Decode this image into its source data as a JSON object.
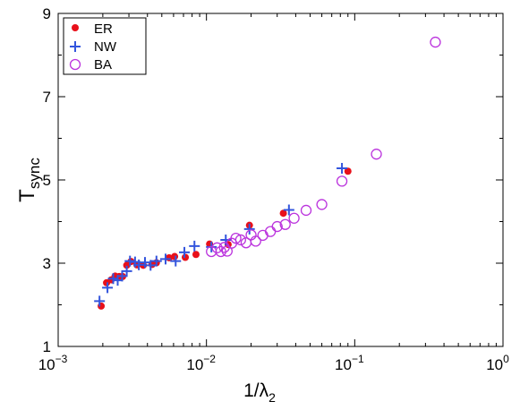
{
  "chart_data": {
    "type": "scatter",
    "x_scale": "log",
    "xlim": [
      0.001,
      1
    ],
    "ylim": [
      1,
      9
    ],
    "xlabel": {
      "main": "1/λ",
      "sub": "2"
    },
    "ylabel": {
      "main": "T",
      "sub": "sync"
    },
    "x_ticks": [
      {
        "value": 0.001,
        "base": "10",
        "exp": "−3"
      },
      {
        "value": 0.01,
        "base": "10",
        "exp": "−2"
      },
      {
        "value": 0.1,
        "base": "10",
        "exp": "−1"
      },
      {
        "value": 1,
        "base": "10",
        "exp": "0"
      }
    ],
    "y_ticks": [
      1,
      3,
      5,
      7,
      9
    ],
    "grid": false,
    "legend_position": "top-left",
    "series": [
      {
        "name": "ER",
        "marker": "filled-circle",
        "color": "#e8101a",
        "points": [
          [
            0.00195,
            1.97
          ],
          [
            0.00212,
            2.53
          ],
          [
            0.00228,
            2.6
          ],
          [
            0.00242,
            2.69
          ],
          [
            0.00258,
            2.68
          ],
          [
            0.00272,
            2.68
          ],
          [
            0.0029,
            2.95
          ],
          [
            0.0031,
            3.04
          ],
          [
            0.0034,
            2.96
          ],
          [
            0.00375,
            2.95
          ],
          [
            0.0043,
            2.97
          ],
          [
            0.0046,
            3.01
          ],
          [
            0.0056,
            3.13
          ],
          [
            0.0061,
            3.16
          ],
          [
            0.0072,
            3.14
          ],
          [
            0.0085,
            3.21
          ],
          [
            0.0105,
            3.46
          ],
          [
            0.014,
            3.45
          ],
          [
            0.0195,
            3.91
          ],
          [
            0.033,
            4.2
          ],
          [
            0.09,
            5.21
          ]
        ]
      },
      {
        "name": "NW",
        "marker": "plus",
        "color": "#3355dd",
        "points": [
          [
            0.0019,
            2.09
          ],
          [
            0.00215,
            2.41
          ],
          [
            0.00235,
            2.63
          ],
          [
            0.00252,
            2.59
          ],
          [
            0.0027,
            2.69
          ],
          [
            0.0029,
            2.81
          ],
          [
            0.00305,
            3.05
          ],
          [
            0.0033,
            3.03
          ],
          [
            0.0035,
            2.96
          ],
          [
            0.00385,
            3.02
          ],
          [
            0.0042,
            2.95
          ],
          [
            0.0046,
            3.05
          ],
          [
            0.0053,
            3.1
          ],
          [
            0.0062,
            3.05
          ],
          [
            0.0071,
            3.26
          ],
          [
            0.0083,
            3.41
          ],
          [
            0.0108,
            3.39
          ],
          [
            0.0135,
            3.56
          ],
          [
            0.0195,
            3.82
          ],
          [
            0.036,
            4.28
          ],
          [
            0.082,
            5.28
          ]
        ]
      },
      {
        "name": "BA",
        "marker": "open-circle",
        "color": "#bb33dd",
        "points": [
          [
            0.0108,
            3.28
          ],
          [
            0.0118,
            3.37
          ],
          [
            0.0125,
            3.28
          ],
          [
            0.0132,
            3.38
          ],
          [
            0.0138,
            3.29
          ],
          [
            0.0148,
            3.48
          ],
          [
            0.0158,
            3.6
          ],
          [
            0.017,
            3.56
          ],
          [
            0.0185,
            3.49
          ],
          [
            0.02,
            3.68
          ],
          [
            0.0215,
            3.53
          ],
          [
            0.024,
            3.67
          ],
          [
            0.027,
            3.76
          ],
          [
            0.03,
            3.88
          ],
          [
            0.034,
            3.93
          ],
          [
            0.039,
            4.08
          ],
          [
            0.047,
            4.27
          ],
          [
            0.06,
            4.41
          ],
          [
            0.082,
            4.97
          ],
          [
            0.14,
            5.62
          ],
          [
            0.35,
            8.31
          ]
        ]
      }
    ]
  }
}
